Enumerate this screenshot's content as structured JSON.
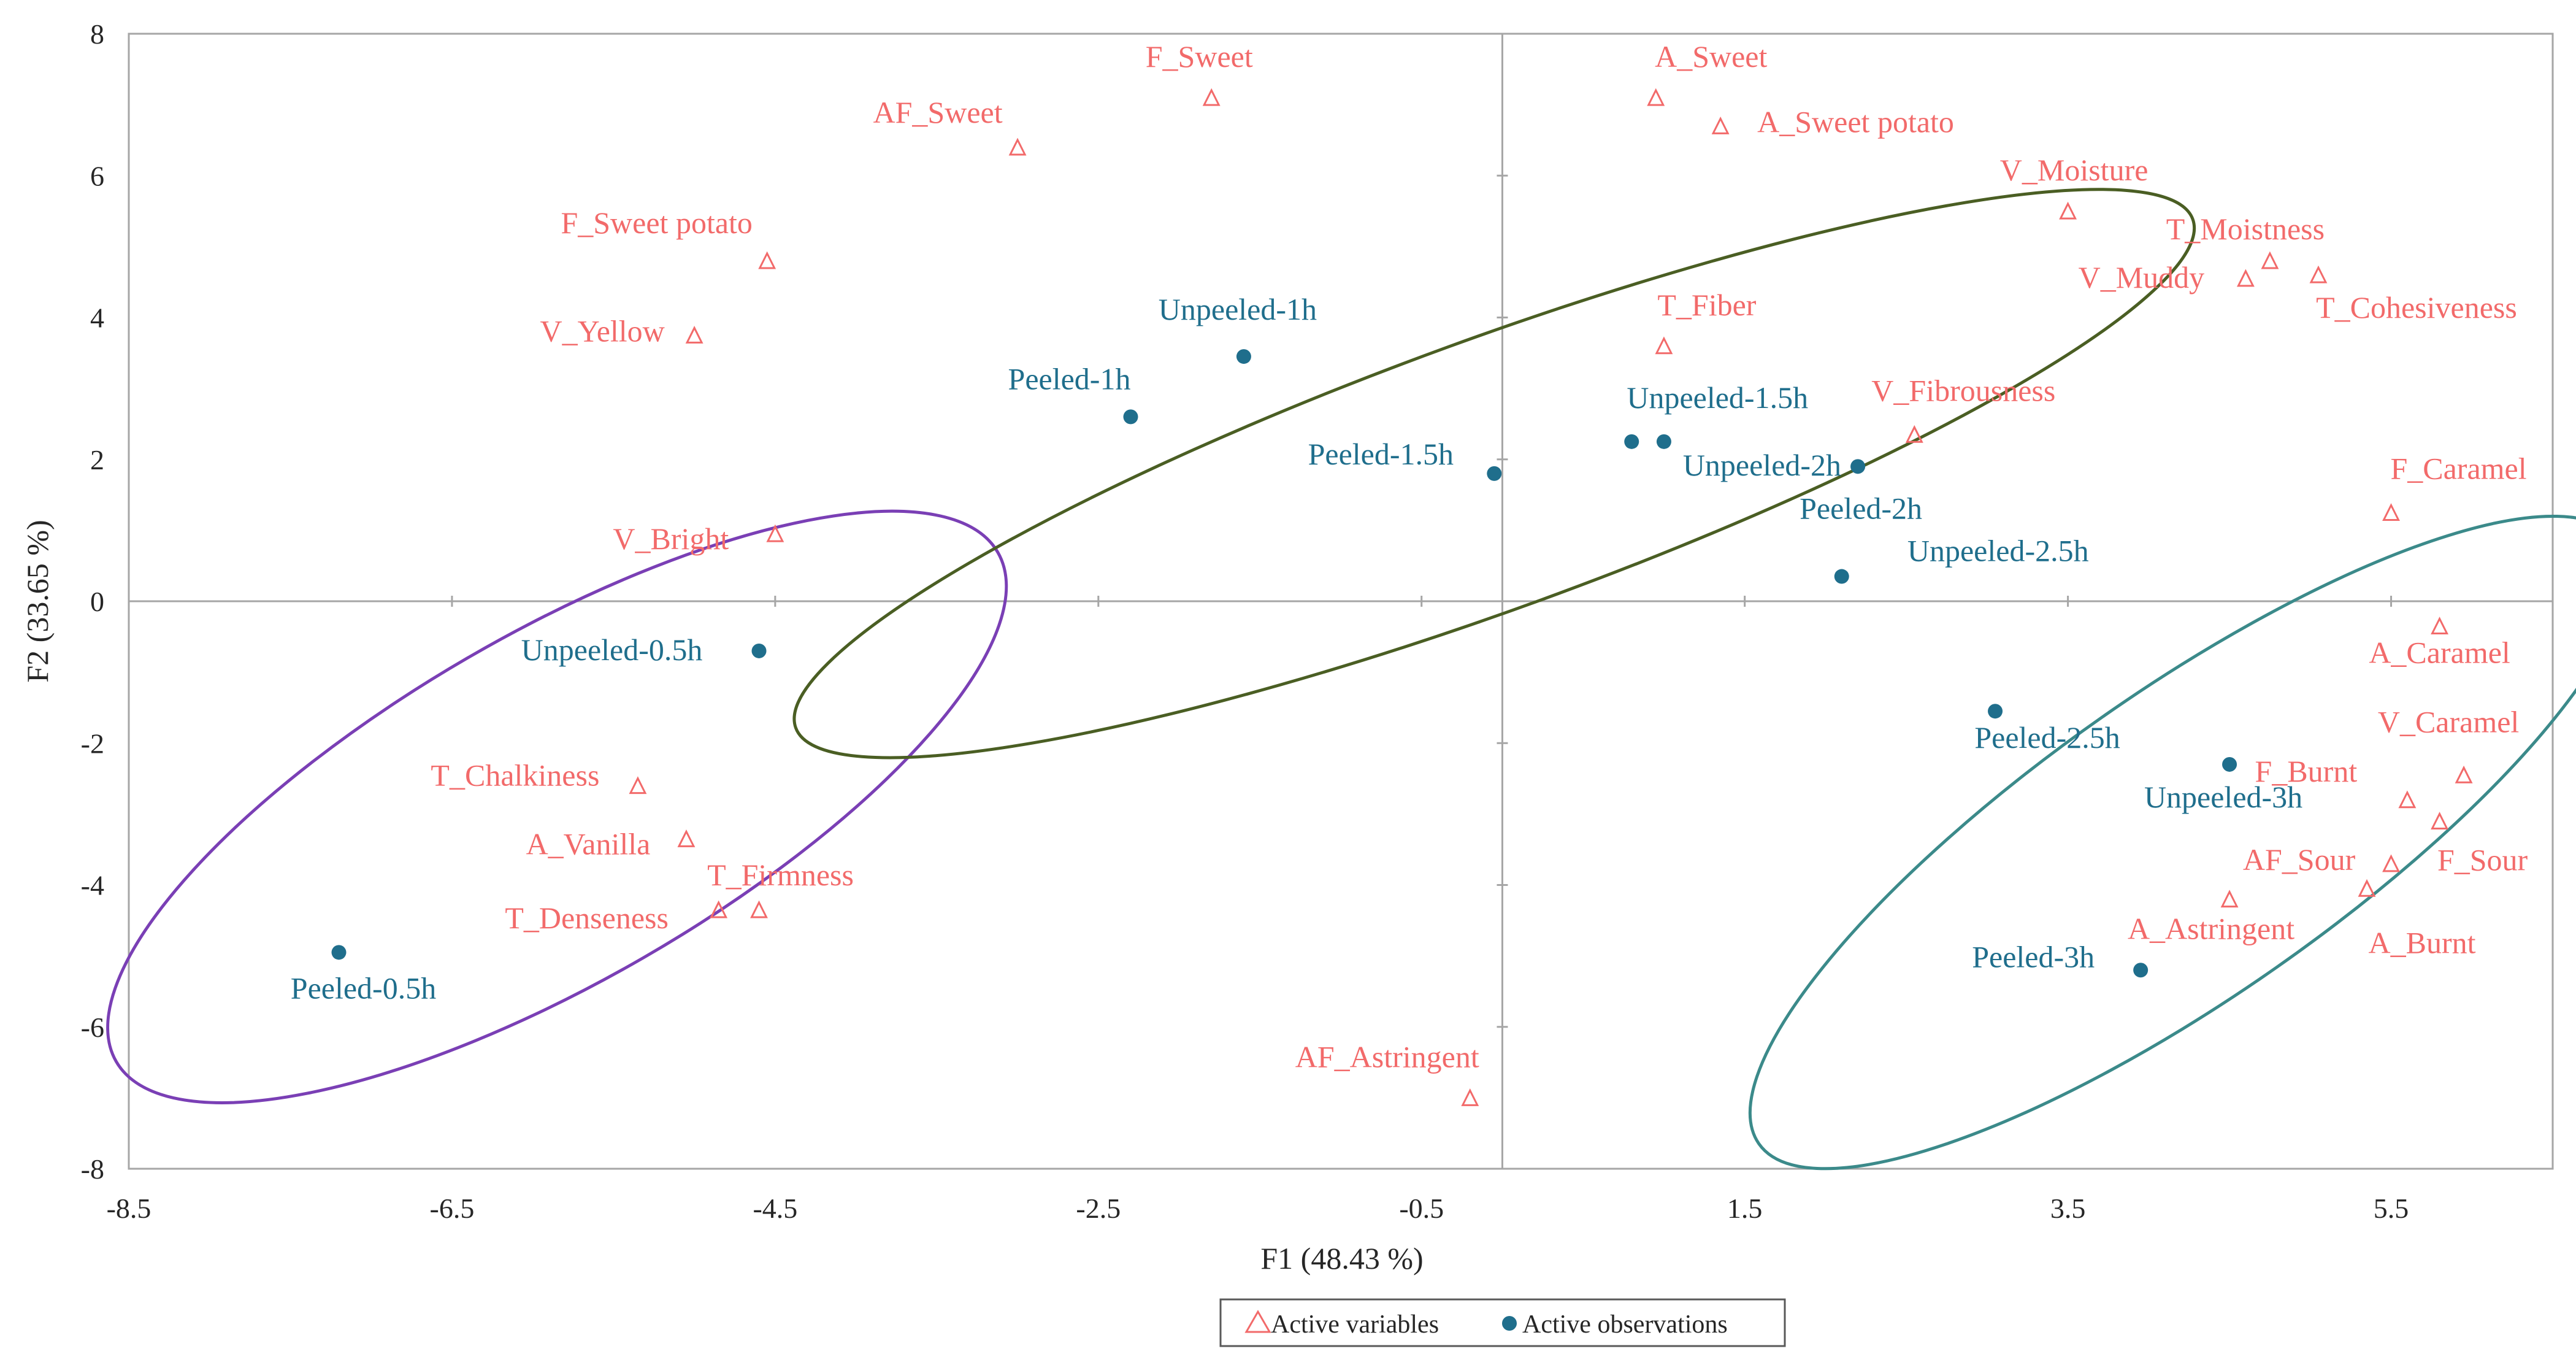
{
  "chart_data": {
    "type": "scatter",
    "title": "",
    "xlabel": "F1 (48.43 %)",
    "ylabel": "F2 (33.65 %)",
    "xlim": [
      -8.5,
      6.5
    ],
    "ylim": [
      -8,
      8
    ],
    "xticks": [
      -8.5,
      -6.5,
      -4.5,
      -2.5,
      -0.5,
      1.5,
      3.5,
      5.5
    ],
    "yticks": [
      -8,
      -6,
      -4,
      -2,
      0,
      2,
      4,
      6,
      8
    ],
    "legend": {
      "placement": "bottom-center",
      "items": [
        {
          "label": "Active variables",
          "marker": "triangle",
          "color": "#f26a6a"
        },
        {
          "label": "Active observations",
          "marker": "circle",
          "color": "#1f6e8c"
        }
      ]
    },
    "series": [
      {
        "name": "Active variables",
        "color": "#f26a6a",
        "marker": "triangle",
        "points": [
          {
            "label": "F_Sweet",
            "x": -1.8,
            "y": 7.1
          },
          {
            "label": "AF_Sweet",
            "x": -3.0,
            "y": 6.4
          },
          {
            "label": "A_Sweet",
            "x": 0.95,
            "y": 7.1
          },
          {
            "label": "A_Sweet potato",
            "x": 1.35,
            "y": 6.7
          },
          {
            "label": "F_Sweet potato",
            "x": -4.55,
            "y": 4.8
          },
          {
            "label": "V_Yellow",
            "x": -5.0,
            "y": 3.75
          },
          {
            "label": "V_Moisture",
            "x": 3.5,
            "y": 5.5
          },
          {
            "label": "T_Moistness",
            "x": 4.75,
            "y": 4.8
          },
          {
            "label": "V_Muddy",
            "x": 4.6,
            "y": 4.55
          },
          {
            "label": "T_Cohesiveness",
            "x": 5.05,
            "y": 4.6
          },
          {
            "label": "T_Fiber",
            "x": 1.0,
            "y": 3.6
          },
          {
            "label": "V_Fibrousness",
            "x": 2.55,
            "y": 2.35
          },
          {
            "label": "F_Caramel",
            "x": 5.5,
            "y": 1.25
          },
          {
            "label": "V_Bright",
            "x": -4.5,
            "y": 0.95
          },
          {
            "label": "A_Caramel",
            "x": 5.8,
            "y": -0.35
          },
          {
            "label": "V_Caramel",
            "x": 5.95,
            "y": -2.45
          },
          {
            "label": "F_Burnt",
            "x": 5.6,
            "y": -2.8
          },
          {
            "label": "F_Sour",
            "x": 5.8,
            "y": -3.1
          },
          {
            "label": "AF_Sour",
            "x": 5.5,
            "y": -3.7
          },
          {
            "label": "A_Burnt",
            "x": 5.35,
            "y": -4.05
          },
          {
            "label": "A_Astringent",
            "x": 4.5,
            "y": -4.2
          },
          {
            "label": "T_Chalkiness",
            "x": -5.35,
            "y": -2.6
          },
          {
            "label": "A_Vanilla",
            "x": -5.05,
            "y": -3.35
          },
          {
            "label": "T_Denseness",
            "x": -4.85,
            "y": -4.35
          },
          {
            "label": "T_Firmness",
            "x": -4.6,
            "y": -4.35
          },
          {
            "label": "AF_Astringent",
            "x": -0.2,
            "y": -7.0
          }
        ]
      },
      {
        "name": "Active observations",
        "color": "#1f6e8c",
        "marker": "circle",
        "points": [
          {
            "label": "Unpeeled-1h",
            "x": -1.6,
            "y": 3.45
          },
          {
            "label": "Peeled-1h",
            "x": -2.3,
            "y": 2.6
          },
          {
            "label": "Peeled-1.5h",
            "x": -0.05,
            "y": 1.8
          },
          {
            "label": "Unpeeled-1.5h",
            "x": 0.8,
            "y": 2.25
          },
          {
            "label": "Unpeeled-2h",
            "x": 1.0,
            "y": 2.25
          },
          {
            "label": "Peeled-2h",
            "x": 2.2,
            "y": 1.9
          },
          {
            "label": "Unpeeled-2.5h",
            "x": 2.1,
            "y": 0.35
          },
          {
            "label": "Unpeeled-0.5h",
            "x": -4.6,
            "y": -0.7
          },
          {
            "label": "Peeled-0.5h",
            "x": -7.2,
            "y": -4.95
          },
          {
            "label": "Peeled-2.5h",
            "x": 3.05,
            "y": -1.55
          },
          {
            "label": "Unpeeled-3h",
            "x": 4.5,
            "y": -2.3
          },
          {
            "label": "Peeled-3h",
            "x": 3.95,
            "y": -5.2
          }
        ]
      }
    ],
    "ellipses": [
      {
        "name": "group-0.5h",
        "color": "#7a3fb5",
        "cx": -5.85,
        "cy": -2.9,
        "rx": 3.15,
        "ry": 2.45,
        "rotation_deg": 30
      },
      {
        "name": "group-1h-2.5h",
        "color": "#4a5e23",
        "cx": -0.05,
        "cy": 1.8,
        "rx": 4.6,
        "ry": 1.9,
        "rotation_deg": 20
      },
      {
        "name": "group-2.5h-3h",
        "color": "#3b8a8a",
        "cx": 4.25,
        "cy": -3.4,
        "rx": 3.25,
        "ry": 2.15,
        "rotation_deg": 35
      }
    ]
  }
}
